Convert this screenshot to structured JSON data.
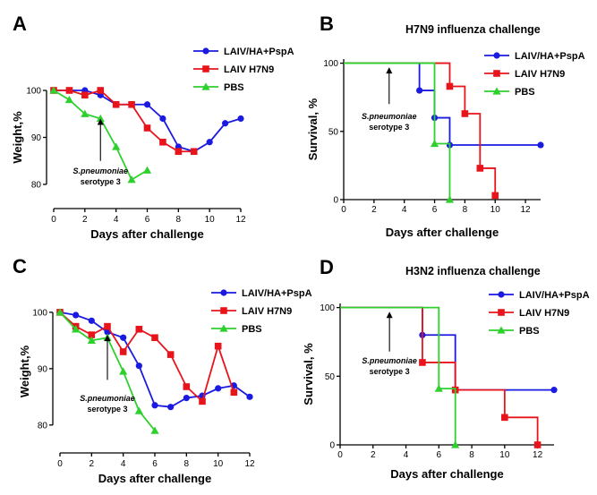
{
  "figure": {
    "charts": [
      {
        "panel": "A",
        "type": "line",
        "title": "",
        "xlabel": "Days after challenge",
        "ylabel": "Weight,%",
        "xlim": [
          0,
          12
        ],
        "ylim": [
          76,
          104
        ],
        "xticks": [
          0,
          2,
          4,
          6,
          8,
          10,
          12
        ],
        "yticks": [
          80,
          90,
          100
        ],
        "axis_style": "offset-ticks",
        "legend_position": "top-right",
        "series": [
          {
            "name": "LAIV/HA+PspA",
            "color": "#1a1ae0",
            "marker": "circle",
            "x": [
              0,
              1,
              2,
              3,
              4,
              5,
              6,
              7,
              8,
              9,
              10,
              11,
              12
            ],
            "y": [
              100,
              100,
              100,
              99,
              97,
              97,
              97,
              94,
              88,
              87,
              89,
              93,
              94
            ]
          },
          {
            "name": "LAIV H7N9",
            "color": "#e8141c",
            "marker": "square",
            "x": [
              0,
              1,
              2,
              3,
              4,
              5,
              6,
              7,
              8,
              9
            ],
            "y": [
              100,
              100,
              99,
              100,
              97,
              97,
              92,
              89,
              87,
              87
            ]
          },
          {
            "name": "PBS",
            "color": "#2ed02e",
            "marker": "triangle",
            "x": [
              0,
              1,
              2,
              3,
              4,
              5,
              6
            ],
            "y": [
              100,
              98,
              95,
              94,
              88,
              81,
              83
            ]
          }
        ],
        "annotation": {
          "text_line1": "S.pneumoniae",
          "text_line2": "serotype 3",
          "x": 3,
          "arrow_from_y": 85,
          "arrow_to_y": 94
        }
      },
      {
        "panel": "B",
        "type": "step",
        "title": "H7N9 influenza challenge",
        "xlabel": "Days after challenge",
        "ylabel": "Survival, %",
        "xlim": [
          0,
          13
        ],
        "ylim": [
          0,
          103
        ],
        "xticks": [
          0,
          2,
          4,
          6,
          8,
          10,
          12
        ],
        "yticks": [
          0,
          50,
          100
        ],
        "axis_style": "box-left-bottom",
        "legend_position": "top-right",
        "series": [
          {
            "name": "LAIV/HA+PspA",
            "color": "#1a1ae0",
            "marker": "circle",
            "x": [
              0,
              5,
              6,
              7,
              13
            ],
            "y": [
              100,
              80,
              60,
              40,
              40
            ]
          },
          {
            "name": "LAIV H7N9",
            "color": "#e8141c",
            "marker": "square",
            "x": [
              0,
              7,
              8,
              9,
              10
            ],
            "y": [
              100,
              83,
              63,
              23,
              3
            ]
          },
          {
            "name": "PBS",
            "color": "#2ed02e",
            "marker": "triangle",
            "x": [
              0,
              6,
              7
            ],
            "y": [
              100,
              41,
              0
            ]
          }
        ],
        "annotation": {
          "text_line1": "S.pneumoniae",
          "text_line2": "serotype 3",
          "x": 3,
          "arrow_from_y": 70,
          "arrow_to_y": 97
        }
      },
      {
        "panel": "C",
        "type": "line",
        "title": "",
        "xlabel": "Days after challenge",
        "ylabel": "Weight,%",
        "xlim": [
          0,
          12
        ],
        "ylim": [
          76,
          103
        ],
        "xticks": [
          0,
          2,
          4,
          6,
          8,
          10,
          12
        ],
        "yticks": [
          80,
          90,
          100
        ],
        "axis_style": "offset-ticks",
        "legend_position": "top-right",
        "series": [
          {
            "name": "LAIV/HA+PspA",
            "color": "#1a1ae0",
            "marker": "circle",
            "x": [
              0,
              1,
              2,
              3,
              4,
              5,
              6,
              7,
              8,
              9,
              10,
              11,
              12
            ],
            "y": [
              100,
              99.5,
              98.5,
              96.5,
              95.5,
              90.5,
              83.5,
              83.2,
              84.8,
              85.2,
              86.5,
              87,
              85
            ]
          },
          {
            "name": "LAIV H7N9",
            "color": "#e8141c",
            "marker": "square",
            "x": [
              0,
              1,
              2,
              3,
              4,
              5,
              6,
              7,
              8,
              9,
              10,
              11
            ],
            "y": [
              100,
              97.5,
              96,
              97.5,
              93,
              97,
              95.5,
              92.5,
              86.8,
              84.2,
              94,
              85.8
            ]
          },
          {
            "name": "PBS",
            "color": "#2ed02e",
            "marker": "triangle",
            "x": [
              0,
              1,
              2,
              3,
              4,
              5,
              6
            ],
            "y": [
              100,
              97,
              95,
              95.5,
              89.5,
              82.5,
              79
            ]
          }
        ],
        "annotation": {
          "text_line1": "S.pneumoniae",
          "text_line2": "serotype 3",
          "x": 3,
          "arrow_from_y": 88,
          "arrow_to_y": 96
        }
      },
      {
        "panel": "D",
        "type": "step",
        "title": "H3N2 influenza challenge",
        "xlabel": "Days after challenge",
        "ylabel": "Survival, %",
        "xlim": [
          0,
          13
        ],
        "ylim": [
          0,
          103
        ],
        "xticks": [
          0,
          2,
          4,
          6,
          8,
          10,
          12
        ],
        "yticks": [
          0,
          50,
          100
        ],
        "axis_style": "box-left-bottom",
        "legend_position": "top-right",
        "series": [
          {
            "name": "LAIV/HA+PspA",
            "color": "#1a1ae0",
            "marker": "circle",
            "x": [
              0,
              5,
              7,
              13
            ],
            "y": [
              100,
              80,
              40,
              40
            ]
          },
          {
            "name": "LAIV H7N9",
            "color": "#e8141c",
            "marker": "square",
            "x": [
              0,
              5,
              7,
              10,
              12
            ],
            "y": [
              100,
              60,
              40,
              20,
              0
            ]
          },
          {
            "name": "PBS",
            "color": "#2ed02e",
            "marker": "triangle",
            "x": [
              0,
              6,
              7
            ],
            "y": [
              100,
              41,
              0
            ]
          }
        ],
        "annotation": {
          "text_line1": "S.pneumoniae",
          "text_line2": "serotype 3",
          "x": 3,
          "arrow_from_y": 68,
          "arrow_to_y": 97
        }
      }
    ]
  }
}
